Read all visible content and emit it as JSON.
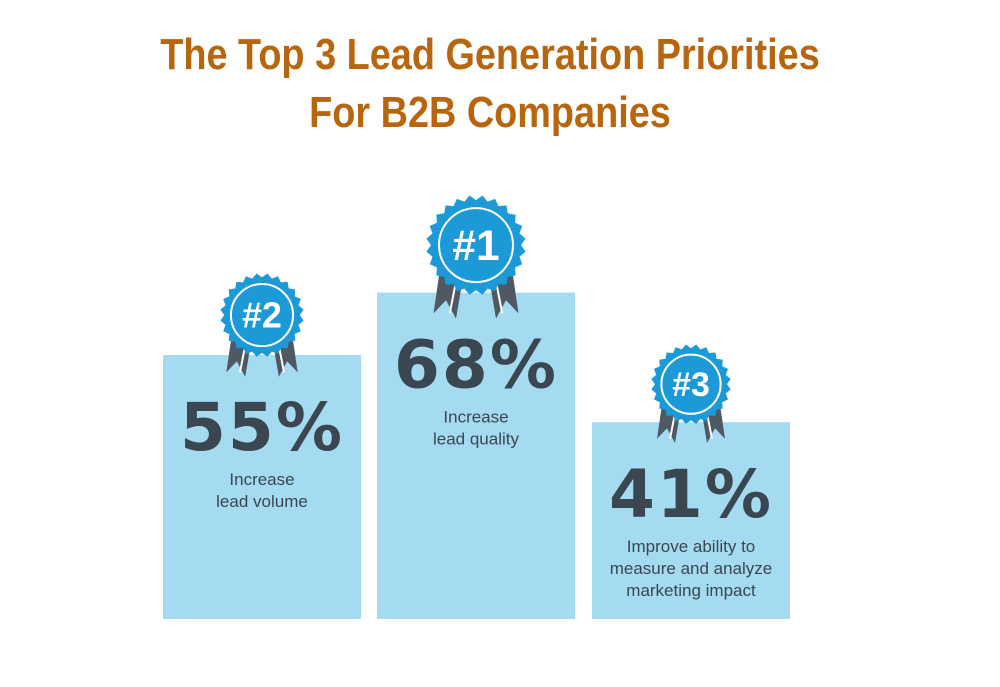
{
  "chart_data": {
    "type": "bar",
    "title_lines": [
      "The Top 3 Lead Generation Priorities",
      "For B2B Companies"
    ],
    "categories": [
      "Increase lead volume",
      "Increase lead quality",
      "Improve ability to measure and analyze marketing impact"
    ],
    "ranks": [
      "#2",
      "#1",
      "#3"
    ],
    "values": [
      55,
      68,
      41
    ],
    "value_labels": [
      "55%",
      "68%",
      "41%"
    ],
    "label_lines": [
      [
        "Increase",
        "lead volume"
      ],
      [
        "Increase",
        "lead quality"
      ],
      [
        "Improve ability to",
        "measure and analyze",
        "marketing impact"
      ]
    ],
    "ylim": [
      0,
      100
    ],
    "colors": {
      "bar": "#a4dbf1",
      "badge": "#1b9ad7",
      "ribbon": "#4e5964",
      "value_text": "#3a4650",
      "label_text": "#3a4650",
      "title": "#b8650f"
    }
  }
}
